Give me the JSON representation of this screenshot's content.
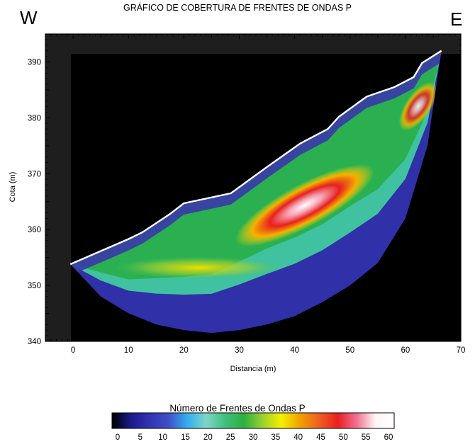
{
  "chart_data": {
    "type": "heatmap",
    "title": "GRÁFICO DE COBERTURA DE FRENTES DE ONDAS P",
    "corner_labels": {
      "left": "W",
      "right": "E"
    },
    "xlabel": "Distancia (m)",
    "ylabel": "Cota (m)",
    "xlim": [
      -5,
      70
    ],
    "ylim": [
      340,
      395
    ],
    "x_ticks": [
      "0",
      "10",
      "20",
      "30",
      "40",
      "50",
      "60",
      "70"
    ],
    "y_ticks": [
      "340",
      "350",
      "360",
      "370",
      "380",
      "390"
    ],
    "surface_profile": {
      "x": [
        -0.5,
        10,
        12.5,
        17.5,
        20,
        28.5,
        35,
        41,
        46,
        48,
        53,
        58,
        61.5,
        63,
        66.5
      ],
      "y": [
        353.8,
        358.3,
        359.5,
        362.8,
        364.7,
        366.5,
        371.2,
        375.4,
        378,
        380.2,
        383.8,
        385.5,
        387.3,
        389.8,
        392
      ]
    },
    "coverage_bottom": {
      "x": [
        -0.5,
        5,
        10,
        15,
        20,
        25,
        30,
        35,
        40,
        45,
        50,
        55,
        60,
        64,
        66.5
      ],
      "y": [
        353.8,
        348,
        345,
        343,
        342,
        341.5,
        342,
        343,
        344.5,
        347,
        350,
        354,
        362,
        375,
        392
      ]
    },
    "colorbar": {
      "title": "Número de Frentes de Ondas P",
      "min": 0,
      "max": 60,
      "tick_labels": [
        "0",
        "5",
        "10",
        "15",
        "20",
        "25",
        "30",
        "35",
        "40",
        "45",
        "50",
        "55",
        "60"
      ],
      "colors": [
        "#000000",
        "#1a1a8c",
        "#3333b3",
        "#3f4fc8",
        "#33aef0",
        "#7fd6c8",
        "#40c080",
        "#2ab040",
        "#9ad030",
        "#f5f000",
        "#f0a000",
        "#f06020",
        "#ea2020",
        "#f07090",
        "#fff5f5",
        "#ffffff"
      ]
    }
  }
}
